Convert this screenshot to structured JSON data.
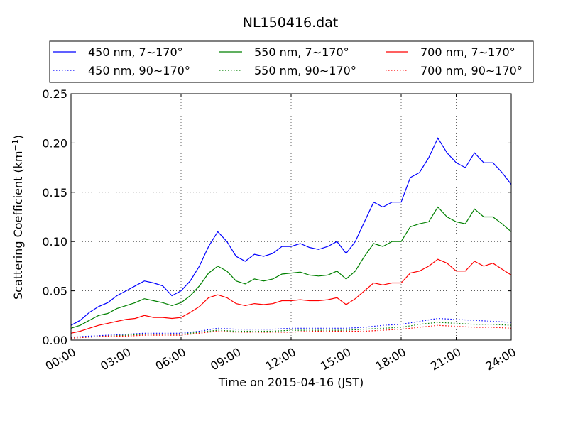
{
  "chart_data": {
    "type": "line",
    "title": "NL150416.dat",
    "xlabel": "Time on 2015-04-16 (JST)",
    "ylabel_main": "Scattering Coefficient (km",
    "ylabel_sup": "−1",
    "ylabel_end": ")",
    "xlim": [
      0,
      24
    ],
    "ylim": [
      0,
      0.25
    ],
    "x_ticks": [
      0,
      3,
      6,
      9,
      12,
      15,
      18,
      21,
      24
    ],
    "x_tick_labels": [
      "00:00",
      "03:00",
      "06:00",
      "09:00",
      "12:00",
      "15:00",
      "18:00",
      "21:00",
      "24:00"
    ],
    "y_ticks": [
      0,
      0.05,
      0.1,
      0.15,
      0.2,
      0.25
    ],
    "y_tick_labels": [
      "0.00",
      "0.05",
      "0.10",
      "0.15",
      "0.20",
      "0.25"
    ],
    "grid": true,
    "legend_position": "top",
    "series": [
      {
        "name": "450 nm, 7∼170°",
        "color": "#0000ff",
        "style": "solid",
        "x": [
          0,
          0.5,
          1,
          1.5,
          2,
          2.5,
          3,
          3.5,
          4,
          4.5,
          5,
          5.5,
          6,
          6.5,
          7,
          7.5,
          8,
          8.5,
          9,
          9.5,
          10,
          10.5,
          11,
          11.5,
          12,
          12.5,
          13,
          13.5,
          14,
          14.5,
          15,
          15.5,
          16,
          16.5,
          17,
          17.5,
          18,
          18.5,
          19,
          19.5,
          20,
          20.5,
          21,
          21.5,
          22,
          22.5,
          23,
          23.5,
          24
        ],
        "y": [
          0.015,
          0.02,
          0.028,
          0.034,
          0.038,
          0.045,
          0.05,
          0.055,
          0.06,
          0.058,
          0.055,
          0.045,
          0.05,
          0.06,
          0.075,
          0.095,
          0.11,
          0.1,
          0.085,
          0.08,
          0.087,
          0.085,
          0.088,
          0.095,
          0.095,
          0.098,
          0.094,
          0.092,
          0.095,
          0.1,
          0.088,
          0.1,
          0.12,
          0.14,
          0.135,
          0.14,
          0.14,
          0.165,
          0.17,
          0.185,
          0.205,
          0.19,
          0.18,
          0.175,
          0.19,
          0.18,
          0.18,
          0.17,
          0.158
        ]
      },
      {
        "name": "550 nm, 7∼170°",
        "color": "#008000",
        "style": "solid",
        "x": [
          0,
          0.5,
          1,
          1.5,
          2,
          2.5,
          3,
          3.5,
          4,
          4.5,
          5,
          5.5,
          6,
          6.5,
          7,
          7.5,
          8,
          8.5,
          9,
          9.5,
          10,
          10.5,
          11,
          11.5,
          12,
          12.5,
          13,
          13.5,
          14,
          14.5,
          15,
          15.5,
          16,
          16.5,
          17,
          17.5,
          18,
          18.5,
          19,
          19.5,
          20,
          20.5,
          21,
          21.5,
          22,
          22.5,
          23,
          23.5,
          24
        ],
        "y": [
          0.012,
          0.015,
          0.02,
          0.025,
          0.027,
          0.032,
          0.035,
          0.038,
          0.042,
          0.04,
          0.038,
          0.035,
          0.038,
          0.045,
          0.055,
          0.068,
          0.075,
          0.07,
          0.06,
          0.057,
          0.062,
          0.06,
          0.062,
          0.067,
          0.068,
          0.069,
          0.066,
          0.065,
          0.066,
          0.07,
          0.062,
          0.07,
          0.085,
          0.098,
          0.095,
          0.1,
          0.1,
          0.115,
          0.118,
          0.12,
          0.135,
          0.125,
          0.12,
          0.118,
          0.133,
          0.125,
          0.125,
          0.118,
          0.11
        ]
      },
      {
        "name": "700 nm, 7∼170°",
        "color": "#ff0000",
        "style": "solid",
        "x": [
          0,
          0.5,
          1,
          1.5,
          2,
          2.5,
          3,
          3.5,
          4,
          4.5,
          5,
          5.5,
          6,
          6.5,
          7,
          7.5,
          8,
          8.5,
          9,
          9.5,
          10,
          10.5,
          11,
          11.5,
          12,
          12.5,
          13,
          13.5,
          14,
          14.5,
          15,
          15.5,
          16,
          16.5,
          17,
          17.5,
          18,
          18.5,
          19,
          19.5,
          20,
          20.5,
          21,
          21.5,
          22,
          22.5,
          23,
          23.5,
          24
        ],
        "y": [
          0.007,
          0.009,
          0.012,
          0.015,
          0.017,
          0.019,
          0.021,
          0.022,
          0.025,
          0.023,
          0.023,
          0.022,
          0.023,
          0.028,
          0.034,
          0.043,
          0.046,
          0.043,
          0.037,
          0.035,
          0.037,
          0.036,
          0.037,
          0.04,
          0.04,
          0.041,
          0.04,
          0.04,
          0.041,
          0.043,
          0.036,
          0.042,
          0.05,
          0.058,
          0.056,
          0.058,
          0.058,
          0.068,
          0.07,
          0.075,
          0.082,
          0.078,
          0.07,
          0.07,
          0.08,
          0.075,
          0.078,
          0.072,
          0.066
        ]
      },
      {
        "name": "450 nm, 90∼170°",
        "color": "#0000ff",
        "style": "dotted",
        "x": [
          0,
          1,
          2,
          3,
          4,
          5,
          6,
          7,
          8,
          9,
          10,
          11,
          12,
          13,
          14,
          15,
          16,
          17,
          18,
          19,
          20,
          21,
          22,
          23,
          24
        ],
        "y": [
          0.003,
          0.004,
          0.005,
          0.006,
          0.007,
          0.007,
          0.007,
          0.009,
          0.012,
          0.011,
          0.011,
          0.011,
          0.012,
          0.012,
          0.012,
          0.012,
          0.013,
          0.015,
          0.016,
          0.019,
          0.022,
          0.021,
          0.02,
          0.019,
          0.018
        ]
      },
      {
        "name": "550 nm, 90∼170°",
        "color": "#008000",
        "style": "dotted",
        "x": [
          0,
          1,
          2,
          3,
          4,
          5,
          6,
          7,
          8,
          9,
          10,
          11,
          12,
          13,
          14,
          15,
          16,
          17,
          18,
          19,
          20,
          21,
          22,
          23,
          24
        ],
        "y": [
          0.002,
          0.003,
          0.004,
          0.005,
          0.006,
          0.006,
          0.006,
          0.008,
          0.01,
          0.009,
          0.009,
          0.009,
          0.01,
          0.01,
          0.01,
          0.01,
          0.011,
          0.012,
          0.013,
          0.016,
          0.018,
          0.017,
          0.016,
          0.016,
          0.015
        ]
      },
      {
        "name": "700 nm, 90∼170°",
        "color": "#ff0000",
        "style": "dotted",
        "x": [
          0,
          1,
          2,
          3,
          4,
          5,
          6,
          7,
          8,
          9,
          10,
          11,
          12,
          13,
          14,
          15,
          16,
          17,
          18,
          19,
          20,
          21,
          22,
          23,
          24
        ],
        "y": [
          0.002,
          0.003,
          0.004,
          0.004,
          0.005,
          0.005,
          0.005,
          0.007,
          0.009,
          0.008,
          0.008,
          0.008,
          0.008,
          0.009,
          0.009,
          0.009,
          0.009,
          0.01,
          0.011,
          0.013,
          0.015,
          0.014,
          0.013,
          0.013,
          0.012
        ]
      }
    ]
  }
}
